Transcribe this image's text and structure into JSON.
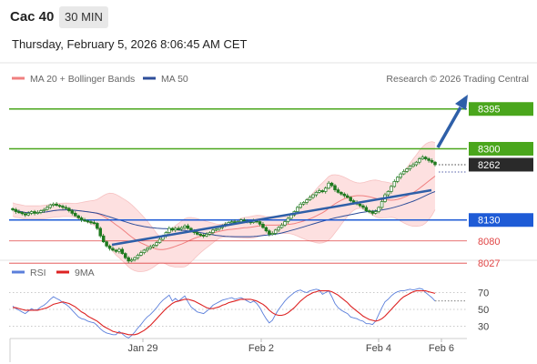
{
  "header": {
    "instrument": "Cac 40",
    "timeframe": "30 MIN",
    "datetime": "Thursday, February 5, 2026 8:06:45 AM CET",
    "credit": "Research © 2026 Trading Central"
  },
  "colors": {
    "resistance": "#4aa61c",
    "support": "#1e5bd6",
    "minor_support": "#e04545",
    "ma20": "#f08080",
    "ma50": "#2e4e9a",
    "band": "#fde0e0",
    "candle": "#1f7a1f",
    "arrow": "#2e5fa8",
    "rsi": "#5b7fdb",
    "rsi_ma": "#dd2222"
  },
  "chart_data": [
    {
      "type": "candlestick",
      "legend": [
        {
          "name": "MA 20 + Bollinger Bands",
          "color": "#f08080"
        },
        {
          "name": "MA 50",
          "color": "#2e4e9a"
        }
      ],
      "ylim": [
        8000,
        8405
      ],
      "x_ticks": [
        "Jan 29",
        "Feb 2",
        "Feb 4",
        "Feb 6"
      ],
      "levels": [
        {
          "value": 8395,
          "label": "8395",
          "kind": "resistance"
        },
        {
          "value": 8300,
          "label": "8300",
          "kind": "resistance"
        },
        {
          "value": 8262,
          "label": "8262",
          "kind": "last"
        },
        {
          "value": 8130,
          "label": "8130",
          "kind": "support"
        },
        {
          "value": 8080,
          "label": "8080",
          "kind": "minor"
        },
        {
          "value": 8027,
          "label": "8027",
          "kind": "minor"
        }
      ],
      "close": [
        8155,
        8150,
        8148,
        8145,
        8142,
        8146,
        8150,
        8146,
        8148,
        8152,
        8155,
        8160,
        8166,
        8168,
        8165,
        8163,
        8160,
        8158,
        8152,
        8146,
        8140,
        8135,
        8130,
        8128,
        8126,
        8124,
        8122,
        8110,
        8092,
        8078,
        8068,
        8062,
        8058,
        8055,
        8060,
        8050,
        8040,
        8032,
        8035,
        8040,
        8046,
        8052,
        8058,
        8062,
        8066,
        8070,
        8076,
        8084,
        8092,
        8100,
        8110,
        8106,
        8110,
        8108,
        8112,
        8116,
        8110,
        8104,
        8100,
        8096,
        8094,
        8092,
        8096,
        8100,
        8106,
        8108,
        8112,
        8116,
        8120,
        8124,
        8126,
        8124,
        8126,
        8130,
        8128,
        8126,
        8124,
        8128,
        8126,
        8120,
        8112,
        8104,
        8096,
        8098,
        8106,
        8112,
        8118,
        8126,
        8134,
        8142,
        8150,
        8160,
        8168,
        8172,
        8178,
        8184,
        8190,
        8196,
        8200,
        8198,
        8206,
        8218,
        8212,
        8202,
        8196,
        8192,
        8188,
        8184,
        8176,
        8172,
        8168,
        8164,
        8160,
        8152,
        8150,
        8146,
        8150,
        8160,
        8174,
        8190,
        8198,
        8210,
        8222,
        8232,
        8240,
        8246,
        8252,
        8258,
        8262,
        8268,
        8276,
        8280,
        8276,
        8272,
        8268,
        8262
      ]
    },
    {
      "type": "line",
      "legend": [
        {
          "name": "RSI",
          "color": "#5b7fdb"
        },
        {
          "name": "9MA",
          "color": "#dd2222"
        }
      ],
      "y_ticks": [
        70,
        50,
        30
      ],
      "ylim": [
        20,
        80
      ],
      "rsi": [
        54,
        51,
        49,
        47,
        45,
        48,
        51,
        49,
        50,
        53,
        55,
        58,
        62,
        65,
        63,
        61,
        58,
        56,
        53,
        49,
        45,
        41,
        39,
        38,
        36,
        35,
        34,
        31,
        27,
        24,
        22,
        21,
        20,
        20,
        24,
        21,
        18,
        16,
        19,
        23,
        28,
        32,
        37,
        41,
        44,
        48,
        52,
        57,
        61,
        64,
        67,
        60,
        63,
        60,
        63,
        66,
        59,
        53,
        50,
        47,
        46,
        45,
        48,
        51,
        55,
        57,
        59,
        61,
        62,
        63,
        64,
        62,
        63,
        64,
        62,
        60,
        58,
        60,
        57,
        52,
        45,
        39,
        34,
        37,
        44,
        50,
        55,
        60,
        64,
        67,
        70,
        72,
        73,
        71,
        70,
        72,
        73,
        74,
        73,
        68,
        70,
        72,
        65,
        57,
        52,
        49,
        47,
        45,
        41,
        40,
        39,
        37,
        36,
        33,
        33,
        32,
        36,
        44,
        52,
        59,
        62,
        66,
        69,
        71,
        72,
        72,
        73,
        74,
        73,
        74,
        75,
        74,
        70,
        67,
        64,
        60
      ],
      "rsi_ma": [
        52,
        52,
        51,
        50,
        49,
        49,
        49,
        49,
        49,
        50,
        51,
        52,
        54,
        56,
        57,
        58,
        59,
        58,
        57,
        55,
        53,
        50,
        47,
        45,
        42,
        40,
        38,
        36,
        33,
        30,
        28,
        26,
        24,
        23,
        22,
        22,
        21,
        20,
        20,
        20,
        21,
        23,
        25,
        28,
        31,
        35,
        39,
        43,
        47,
        51,
        54,
        57,
        59,
        60,
        61,
        62,
        62,
        61,
        60,
        58,
        56,
        54,
        52,
        51,
        51,
        52,
        53,
        55,
        56,
        58,
        59,
        60,
        61,
        62,
        62,
        62,
        62,
        61,
        60,
        58,
        56,
        53,
        49,
        46,
        44,
        43,
        43,
        44,
        46,
        49,
        52,
        56,
        60,
        63,
        66,
        68,
        70,
        71,
        72,
        72,
        72,
        72,
        71,
        69,
        67,
        64,
        61,
        58,
        54,
        51,
        48,
        45,
        42,
        40,
        38,
        37,
        36,
        37,
        39,
        42,
        46,
        50,
        54,
        58,
        62,
        65,
        67,
        69,
        71,
        72,
        72,
        72,
        72,
        71,
        70,
        69
      ]
    }
  ]
}
